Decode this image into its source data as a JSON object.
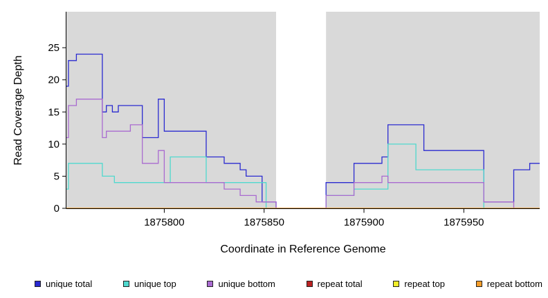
{
  "chart_data": {
    "type": "line",
    "subtype": "step",
    "title": "",
    "xlabel": "Coordinate in Reference Genome",
    "ylabel": "Read Coverage Depth",
    "xlim": [
      1875751,
      1875988
    ],
    "ylim": [
      0,
      30.6
    ],
    "xticks": [
      1875800,
      1875850,
      1875900,
      1875950
    ],
    "yticks": [
      0,
      5,
      10,
      15,
      20,
      25
    ],
    "grid": false,
    "legend_position": "bottom",
    "panel_background": "#d9d9d9",
    "uncovered_region": {
      "start": 1875856,
      "end": 1875881,
      "color": "#ffffff"
    },
    "series": [
      {
        "name": "unique total",
        "color": "#2a2ad0",
        "points": [
          [
            1875751,
            19
          ],
          [
            1875752,
            23
          ],
          [
            1875756,
            24
          ],
          [
            1875769,
            15
          ],
          [
            1875771,
            16
          ],
          [
            1875774,
            15
          ],
          [
            1875777,
            16
          ],
          [
            1875789,
            11
          ],
          [
            1875797,
            17
          ],
          [
            1875800,
            12
          ],
          [
            1875821,
            8
          ],
          [
            1875830,
            7
          ],
          [
            1875838,
            6
          ],
          [
            1875841,
            5
          ],
          [
            1875849,
            1
          ],
          [
            1875856,
            0
          ],
          [
            1875881,
            4
          ],
          [
            1875895,
            7
          ],
          [
            1875909,
            8
          ],
          [
            1875912,
            13
          ],
          [
            1875930,
            9
          ],
          [
            1875960,
            1
          ],
          [
            1875975,
            6
          ],
          [
            1875983,
            7
          ]
        ]
      },
      {
        "name": "unique top",
        "color": "#4fd9ce",
        "points": [
          [
            1875751,
            3
          ],
          [
            1875752,
            7
          ],
          [
            1875769,
            5
          ],
          [
            1875775,
            4
          ],
          [
            1875803,
            8
          ],
          [
            1875821,
            4
          ],
          [
            1875851,
            0
          ],
          [
            1875881,
            2
          ],
          [
            1875895,
            3
          ],
          [
            1875912,
            10
          ],
          [
            1875926,
            6
          ],
          [
            1875960,
            0
          ]
        ]
      },
      {
        "name": "unique bottom",
        "color": "#a96ad0",
        "points": [
          [
            1875751,
            11
          ],
          [
            1875752,
            16
          ],
          [
            1875756,
            17
          ],
          [
            1875769,
            11
          ],
          [
            1875771,
            12
          ],
          [
            1875783,
            13
          ],
          [
            1875789,
            7
          ],
          [
            1875797,
            9
          ],
          [
            1875800,
            4
          ],
          [
            1875830,
            3
          ],
          [
            1875838,
            2
          ],
          [
            1875846,
            1
          ],
          [
            1875856,
            0
          ],
          [
            1875881,
            2
          ],
          [
            1875895,
            4
          ],
          [
            1875909,
            5
          ],
          [
            1875912,
            4
          ],
          [
            1875960,
            1
          ],
          [
            1875975,
            0
          ]
        ]
      },
      {
        "name": "repeat total",
        "color": "#bb2222",
        "points": [
          [
            1875751,
            0
          ]
        ]
      },
      {
        "name": "repeat top",
        "color": "#f2ee2a",
        "points": [
          [
            1875751,
            0
          ]
        ]
      },
      {
        "name": "repeat bottom",
        "color": "#f59d2a",
        "points": [
          [
            1875751,
            0
          ]
        ]
      }
    ]
  }
}
